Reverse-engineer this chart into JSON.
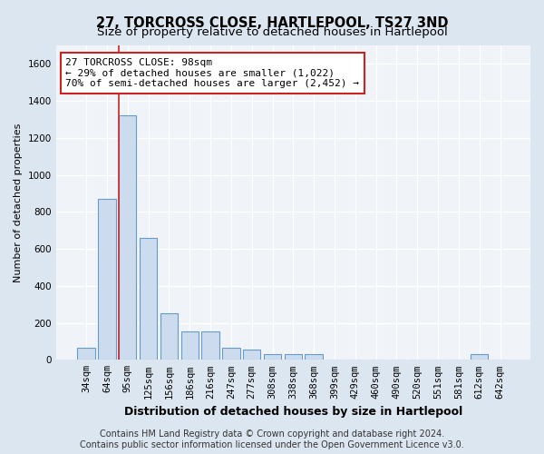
{
  "title": "27, TORCROSS CLOSE, HARTLEPOOL, TS27 3ND",
  "subtitle": "Size of property relative to detached houses in Hartlepool",
  "xlabel": "Distribution of detached houses by size in Hartlepool",
  "ylabel": "Number of detached properties",
  "categories": [
    "34sqm",
    "64sqm",
    "95sqm",
    "125sqm",
    "156sqm",
    "186sqm",
    "216sqm",
    "247sqm",
    "277sqm",
    "308sqm",
    "338sqm",
    "368sqm",
    "399sqm",
    "429sqm",
    "460sqm",
    "490sqm",
    "520sqm",
    "551sqm",
    "581sqm",
    "612sqm",
    "642sqm"
  ],
  "values": [
    65,
    870,
    1320,
    660,
    250,
    155,
    155,
    65,
    55,
    30,
    30,
    30,
    0,
    0,
    0,
    0,
    0,
    0,
    0,
    30,
    0
  ],
  "bar_color": "#ccdcee",
  "bar_edge_color": "#6699cc",
  "vline_color": "#cc2222",
  "vline_x_index": 2,
  "annotation_text": "27 TORCROSS CLOSE: 98sqm\n← 29% of detached houses are smaller (1,022)\n70% of semi-detached houses are larger (2,452) →",
  "annotation_box_facecolor": "#ffffff",
  "annotation_box_edgecolor": "#cc2222",
  "ylim": [
    0,
    1700
  ],
  "yticks": [
    0,
    200,
    400,
    600,
    800,
    1000,
    1200,
    1400,
    1600
  ],
  "outer_background": "#dce6f0",
  "plot_background": "#f0f4f8",
  "grid_color": "#ffffff",
  "title_color": "#000000",
  "title_fontsize": 10.5,
  "subtitle_fontsize": 9.5,
  "tick_fontsize": 7.5,
  "ylabel_fontsize": 8,
  "xlabel_fontsize": 9,
  "annotation_fontsize": 8,
  "footer_fontsize": 7,
  "footer_line1": "Contains HM Land Registry data © Crown copyright and database right 2024.",
  "footer_line2": "Contains public sector information licensed under the Open Government Licence v3.0."
}
